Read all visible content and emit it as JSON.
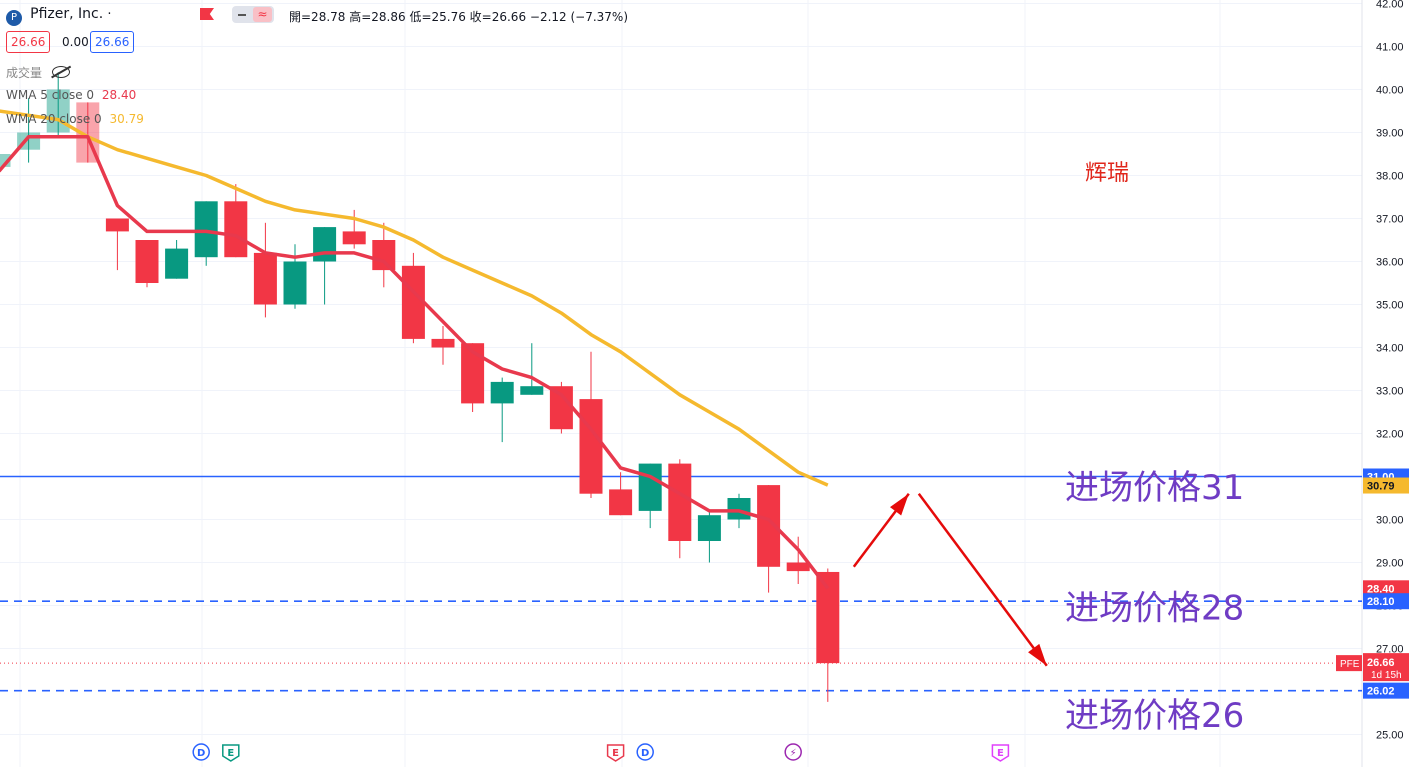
{
  "header": {
    "symbol_name": "Pfizer, Inc.",
    "dot": "·",
    "ohlc_text": "開=28.78 高=28.86 低=25.76 收=26.66 −2.12 (−7.37%)",
    "bid": "26.66",
    "spread": "0.00",
    "ask": "26.66"
  },
  "indicators": {
    "volume_label": "成交量",
    "wma5_label": "WMA 5 close 0",
    "wma5_value": "28.40",
    "wma20_label": "WMA 20 close 0",
    "wma20_value": "30.79"
  },
  "colors": {
    "up": "#089981",
    "down": "#f23645",
    "wma5": "#e8394d",
    "wma20": "#f5b92e",
    "hline": "#2962ff",
    "annotation": "#6f3cc4",
    "title_red": "#e0261b",
    "arrow": "#e50b0b"
  },
  "chart_data": {
    "type": "candlestick",
    "ylim": [
      25,
      42
    ],
    "y_ticks": [
      "25.00",
      "27.00",
      "28.00",
      "29.00",
      "30.00",
      "31.00",
      "32.00",
      "33.00",
      "34.00",
      "35.00",
      "36.00",
      "37.00",
      "38.00",
      "39.00",
      "40.00",
      "41.00",
      "42.00"
    ],
    "candles": [
      {
        "o": 38.2,
        "h": 39.5,
        "l": 37.4,
        "c": 38.5
      },
      {
        "o": 38.6,
        "h": 39.8,
        "l": 38.3,
        "c": 39.0
      },
      {
        "o": 39.0,
        "h": 40.4,
        "l": 38.9,
        "c": 40.0
      },
      {
        "o": 39.7,
        "h": 39.7,
        "l": 38.3,
        "c": 38.3
      },
      {
        "o": 37.0,
        "h": 37.0,
        "l": 35.8,
        "c": 36.7
      },
      {
        "o": 36.5,
        "h": 36.5,
        "l": 35.4,
        "c": 35.5
      },
      {
        "o": 35.6,
        "h": 36.5,
        "l": 35.6,
        "c": 36.3
      },
      {
        "o": 36.1,
        "h": 37.4,
        "l": 35.9,
        "c": 37.4
      },
      {
        "o": 37.4,
        "h": 37.8,
        "l": 36.1,
        "c": 36.1
      },
      {
        "o": 36.2,
        "h": 36.9,
        "l": 34.7,
        "c": 35.0
      },
      {
        "o": 35.0,
        "h": 36.4,
        "l": 34.9,
        "c": 36.0
      },
      {
        "o": 36.0,
        "h": 36.8,
        "l": 35.0,
        "c": 36.8
      },
      {
        "o": 36.7,
        "h": 37.2,
        "l": 36.3,
        "c": 36.4
      },
      {
        "o": 36.5,
        "h": 36.9,
        "l": 35.4,
        "c": 35.8
      },
      {
        "o": 35.9,
        "h": 36.2,
        "l": 34.1,
        "c": 34.2
      },
      {
        "o": 34.2,
        "h": 34.5,
        "l": 33.6,
        "c": 34.0
      },
      {
        "o": 34.1,
        "h": 34.1,
        "l": 32.5,
        "c": 32.7
      },
      {
        "o": 32.7,
        "h": 33.3,
        "l": 31.8,
        "c": 33.2
      },
      {
        "o": 32.9,
        "h": 34.1,
        "l": 32.9,
        "c": 33.1
      },
      {
        "o": 33.1,
        "h": 33.2,
        "l": 32.0,
        "c": 32.1
      },
      {
        "o": 32.8,
        "h": 33.9,
        "l": 30.5,
        "c": 30.6
      },
      {
        "o": 30.7,
        "h": 31.1,
        "l": 30.1,
        "c": 30.1
      },
      {
        "o": 30.2,
        "h": 31.3,
        "l": 29.8,
        "c": 31.3
      },
      {
        "o": 31.3,
        "h": 31.4,
        "l": 29.1,
        "c": 29.5
      },
      {
        "o": 29.5,
        "h": 30.2,
        "l": 29.0,
        "c": 30.1
      },
      {
        "o": 30.0,
        "h": 30.6,
        "l": 29.8,
        "c": 30.5
      },
      {
        "o": 30.8,
        "h": 30.8,
        "l": 28.3,
        "c": 28.9
      },
      {
        "o": 29.0,
        "h": 29.6,
        "l": 28.5,
        "c": 28.8
      },
      {
        "o": 28.78,
        "h": 28.86,
        "l": 25.76,
        "c": 26.66
      }
    ],
    "wma5": [
      38.1,
      38.9,
      38.9,
      38.9,
      37.3,
      36.7,
      36.7,
      36.7,
      36.6,
      36.2,
      36.1,
      36.2,
      36.2,
      36.0,
      35.3,
      34.6,
      33.9,
      33.5,
      33.3,
      32.9,
      32.1,
      31.2,
      31.0,
      30.6,
      30.2,
      30.2,
      30.0,
      29.3,
      28.4
    ],
    "wma20": [
      39.5,
      39.4,
      39.3,
      38.9,
      38.6,
      38.4,
      38.2,
      38.0,
      37.7,
      37.4,
      37.2,
      37.1,
      37.0,
      36.8,
      36.5,
      36.1,
      35.8,
      35.5,
      35.2,
      34.8,
      34.3,
      33.9,
      33.4,
      32.9,
      32.5,
      32.1,
      31.6,
      31.1,
      30.8
    ],
    "hlines": [
      {
        "price": 31.0,
        "style": "solid",
        "label": "31.00"
      },
      {
        "price": 28.1,
        "style": "dashed",
        "label": "28.10"
      },
      {
        "price": 26.02,
        "style": "dashed",
        "label": "26.02"
      }
    ],
    "last_price_line": 26.66,
    "price_tags": {
      "wma20": "30.79",
      "wma5": "28.40",
      "symbol": "PFE",
      "last": "26.66",
      "countdown": "1d 15h"
    },
    "annotations": [
      {
        "text": "进场价格31",
        "price": 30.8
      },
      {
        "text": "进场价格28",
        "price": 28.0
      },
      {
        "text": "进场价格26",
        "price": 25.5
      }
    ],
    "company_label": "辉瑞",
    "events": [
      {
        "label": "D",
        "kind": "dividend",
        "index": 7
      },
      {
        "label": "E",
        "kind": "earnings",
        "index": 8
      },
      {
        "label": "E",
        "kind": "earnings",
        "index": 21
      },
      {
        "label": "D",
        "kind": "dividend",
        "index": 22
      },
      {
        "label": "⚡",
        "kind": "split",
        "index": 27
      },
      {
        "label": "E",
        "kind": "earnings",
        "index": 34
      }
    ]
  }
}
